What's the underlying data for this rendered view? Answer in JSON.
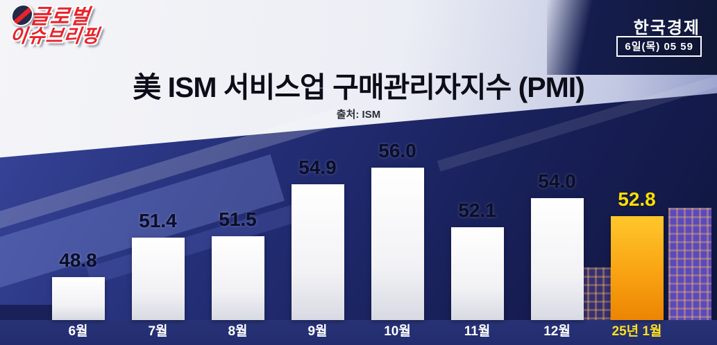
{
  "header": {
    "logo": {
      "line1": "글로벌",
      "line2": "이슈브리핑"
    },
    "channel": "한국경제",
    "datetime": "6일(목) 05 59"
  },
  "title": "美 ISM 서비스업 구매관리자지수 (PMI)",
  "source": "출처: ISM",
  "chart_data": {
    "type": "bar",
    "title": "美 ISM 서비스업 구매관리자지수 (PMI)",
    "source": "출처: ISM",
    "categories": [
      "6월",
      "7월",
      "8월",
      "9월",
      "10월",
      "11월",
      "12월",
      "25년 1월"
    ],
    "values": [
      48.8,
      51.4,
      51.5,
      54.9,
      56.0,
      52.1,
      54.0,
      52.8
    ],
    "highlight_index": 7,
    "ylim": [
      46,
      57.5
    ],
    "bar_color": "#f2f2f5",
    "highlight_bar_color": "#f9a312",
    "value_label_color": "#0b0e28",
    "highlight_value_label_color": "#ffdf00",
    "axis_label_color": "#ffffff",
    "highlight_axis_label_color": "#ffe11a",
    "legend": null,
    "grid": false
  }
}
